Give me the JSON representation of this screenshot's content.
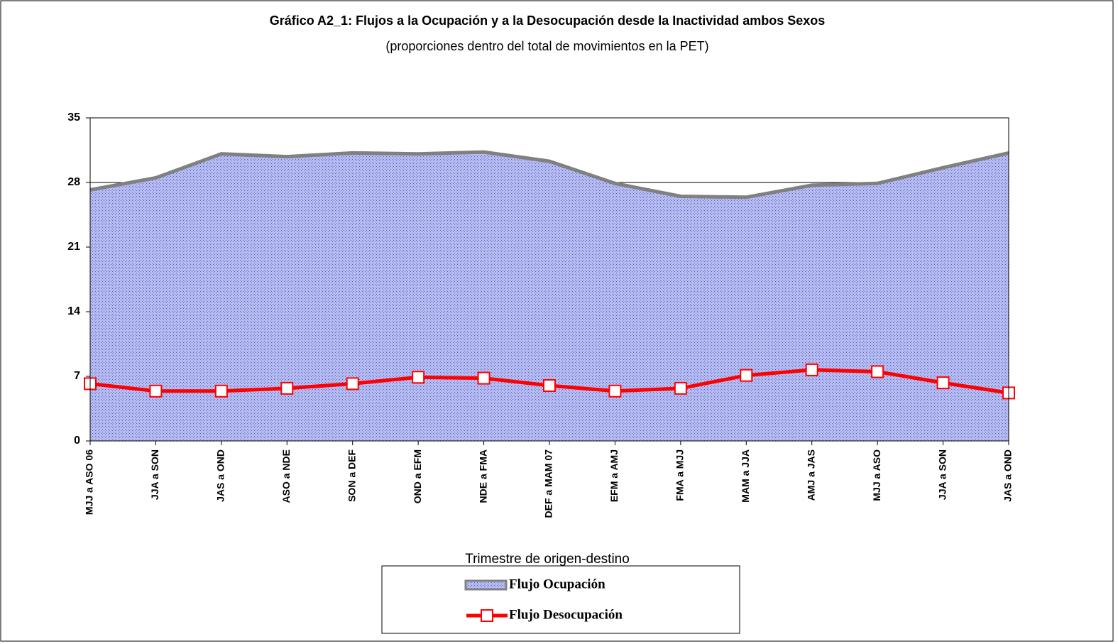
{
  "chart_data": {
    "type": "area-line",
    "title": "Gráfico A2_1: Flujos a la Ocupación y a la Desocupación desde la Inactividad ambos Sexos",
    "subtitle": "(proporciones dentro del total de movimientos en la PET)",
    "x_label": "Trimestre de origen-destino",
    "categories": [
      "MJJ a ASO 06",
      "JJA a SON",
      "JAS a OND",
      "ASO a NDE",
      "SON a DEF",
      "OND a EFM",
      "NDE a FMA",
      "DEF a MAM 07",
      "EFM a AMJ",
      "FMA a MJJ",
      "MAM a JJA",
      "AMJ a JAS",
      "MJJ a ASO",
      "JJA a SON",
      "JAS a OND"
    ],
    "series": [
      {
        "name": "Flujo Ocupación",
        "kind": "area",
        "color": "#a3aaea",
        "values": [
          27.2,
          28.5,
          31.1,
          30.8,
          31.2,
          31.1,
          31.3,
          30.3,
          27.9,
          26.5,
          26.4,
          27.7,
          27.9,
          29.6,
          31.2
        ]
      },
      {
        "name": "Flujo Desocupación",
        "kind": "line",
        "color": "#ff0000",
        "values": [
          6.2,
          5.4,
          5.4,
          5.7,
          6.2,
          6.9,
          6.8,
          6.0,
          5.4,
          5.7,
          7.1,
          7.7,
          7.5,
          6.3,
          5.2
        ]
      }
    ],
    "ylim": [
      0,
      35
    ],
    "yticks": [
      0,
      7,
      14,
      21,
      28,
      35
    ],
    "grid": true
  }
}
